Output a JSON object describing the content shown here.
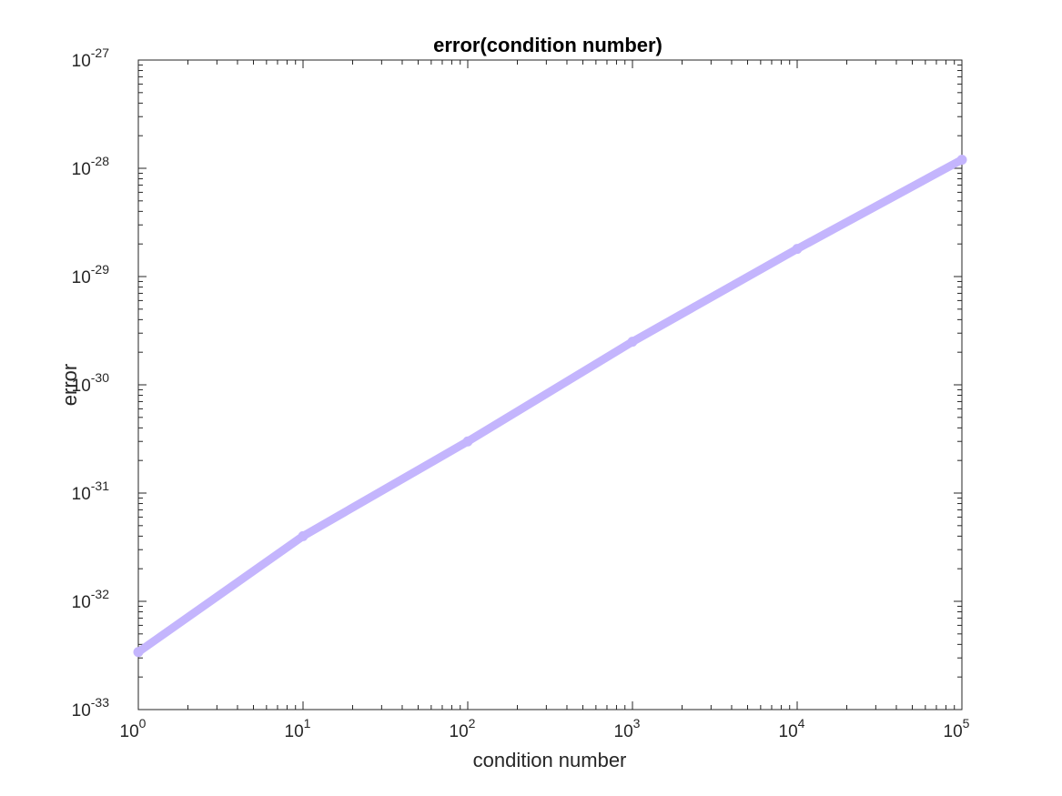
{
  "chart_data": {
    "type": "line",
    "title": "error(condition number)",
    "xlabel": "condition number",
    "ylabel": "error",
    "xscale": "log",
    "yscale": "log",
    "xlim": [
      1,
      100000
    ],
    "ylim": [
      1e-33,
      1e-27
    ],
    "grid": false,
    "legend": "none",
    "x_ticks": [
      {
        "base": "10",
        "exp": "0"
      },
      {
        "base": "10",
        "exp": "1"
      },
      {
        "base": "10",
        "exp": "2"
      },
      {
        "base": "10",
        "exp": "3"
      },
      {
        "base": "10",
        "exp": "4"
      },
      {
        "base": "10",
        "exp": "5"
      }
    ],
    "y_ticks": [
      {
        "base": "10",
        "exp": "-33"
      },
      {
        "base": "10",
        "exp": "-32"
      },
      {
        "base": "10",
        "exp": "-31"
      },
      {
        "base": "10",
        "exp": "-30"
      },
      {
        "base": "10",
        "exp": "-29"
      },
      {
        "base": "10",
        "exp": "-28"
      },
      {
        "base": "10",
        "exp": "-27"
      }
    ],
    "series": [
      {
        "color": "#c4b5fd",
        "x": [
          1,
          10,
          100,
          1000,
          10000,
          100000
        ],
        "y": [
          3.4e-33,
          4e-32,
          3e-31,
          2.5e-30,
          1.8e-29,
          1.2e-28
        ]
      }
    ]
  },
  "colors": {
    "axis": "#262626",
    "series": "#c4b5fd"
  }
}
